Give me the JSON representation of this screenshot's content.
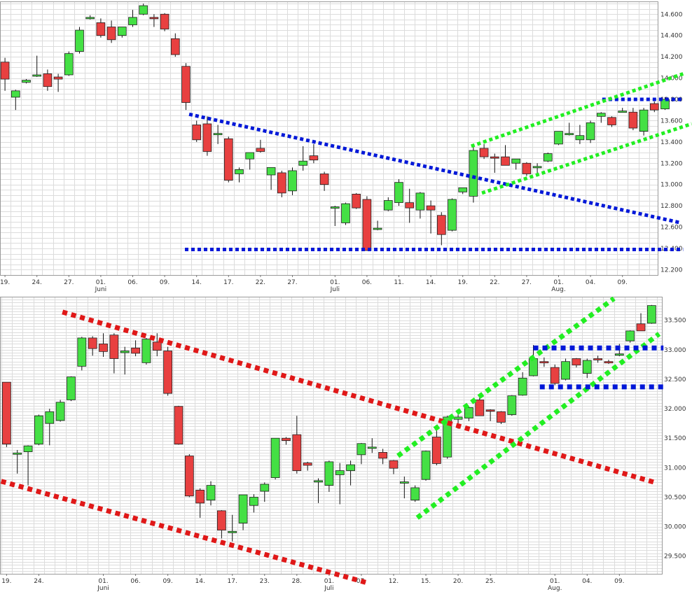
{
  "colors": {
    "up": "#44e044",
    "down": "#e84040",
    "wick": "#111111",
    "blue_line": "#0018d8",
    "green_line": "#22ee22",
    "red_line": "#e01818",
    "grid": "#dcdcdc",
    "background": "#ffffff"
  },
  "chart_data": [
    {
      "type": "candlestick",
      "grid": true,
      "y_axis_position": "right",
      "ylim": [
        12150,
        14720
      ],
      "yticks": [
        "12.200",
        "12.400",
        "12.600",
        "12.800",
        "13.000",
        "13.200",
        "13.400",
        "13.600",
        "13.800",
        "14.000",
        "14.200",
        "14.400",
        "14.600"
      ],
      "ytick_values": [
        12200,
        12400,
        12600,
        12800,
        13000,
        13200,
        13400,
        13600,
        13800,
        14000,
        14200,
        14400,
        14600
      ],
      "xlim": [
        0,
        65
      ],
      "xticks": [
        {
          "x": 0.5,
          "label": "19."
        },
        {
          "x": 3.5,
          "label": "24."
        },
        {
          "x": 6.5,
          "label": "27."
        },
        {
          "x": 9.5,
          "label": "01.",
          "sub": "Juni"
        },
        {
          "x": 12.5,
          "label": "06."
        },
        {
          "x": 15.5,
          "label": "09."
        },
        {
          "x": 18.5,
          "label": "14."
        },
        {
          "x": 21.5,
          "label": "17."
        },
        {
          "x": 24.5,
          "label": "22."
        },
        {
          "x": 27.5,
          "label": "27."
        },
        {
          "x": 31.5,
          "label": "01.",
          "sub": "Juli"
        },
        {
          "x": 34.5,
          "label": "06."
        },
        {
          "x": 37.5,
          "label": "11."
        },
        {
          "x": 40.5,
          "label": "14."
        },
        {
          "x": 43.5,
          "label": "19."
        },
        {
          "x": 46.5,
          "label": "22."
        },
        {
          "x": 49.5,
          "label": "27."
        },
        {
          "x": 52.5,
          "label": "01.",
          "sub": "Aug."
        },
        {
          "x": 55.5,
          "label": "04."
        },
        {
          "x": 58.5,
          "label": "09."
        }
      ],
      "candles": [
        [
          14150,
          14190,
          13880,
          13990
        ],
        [
          13820,
          13890,
          13700,
          13880
        ],
        [
          13960,
          13990,
          13950,
          13980
        ],
        [
          14020,
          14210,
          14010,
          14030
        ],
        [
          14040,
          14080,
          13880,
          13920
        ],
        [
          14010,
          14040,
          13870,
          13990
        ],
        [
          14030,
          14250,
          14020,
          14230
        ],
        [
          14250,
          14480,
          14230,
          14450
        ],
        [
          14570,
          14590,
          14550,
          14570
        ],
        [
          14520,
          14560,
          14380,
          14400
        ],
        [
          14480,
          14540,
          14330,
          14360
        ],
        [
          14400,
          14480,
          14380,
          14480
        ],
        [
          14500,
          14640,
          14480,
          14570
        ],
        [
          14600,
          14700,
          14590,
          14680
        ],
        [
          14570,
          14600,
          14480,
          14560
        ],
        [
          14600,
          14610,
          14440,
          14460
        ],
        [
          14370,
          14420,
          14200,
          14220
        ],
        [
          14110,
          14140,
          13700,
          13770
        ],
        [
          13560,
          13600,
          13400,
          13420
        ],
        [
          13570,
          13640,
          13270,
          13310
        ],
        [
          13480,
          13560,
          13380,
          13480
        ],
        [
          13430,
          13450,
          13020,
          13040
        ],
        [
          13100,
          13160,
          13020,
          13140
        ],
        [
          13240,
          13300,
          13140,
          13300
        ],
        [
          13340,
          13420,
          13300,
          13310
        ],
        [
          13090,
          13160,
          12950,
          13160
        ],
        [
          13110,
          13130,
          12880,
          12920
        ],
        [
          12940,
          13160,
          12900,
          13130
        ],
        [
          13180,
          13360,
          13130,
          13220
        ],
        [
          13270,
          13380,
          13200,
          13230
        ],
        [
          13100,
          13120,
          12940,
          13000
        ],
        [
          12790,
          12800,
          12610,
          12790
        ],
        [
          12640,
          12830,
          12620,
          12820
        ],
        [
          12910,
          12920,
          12770,
          12780
        ],
        [
          12860,
          12890,
          12380,
          12380
        ],
        [
          12590,
          12660,
          12570,
          12590
        ],
        [
          12760,
          12880,
          12750,
          12850
        ],
        [
          12830,
          13050,
          12800,
          13020
        ],
        [
          12830,
          12960,
          12640,
          12780
        ],
        [
          12760,
          12930,
          12680,
          12920
        ],
        [
          12800,
          12850,
          12540,
          12760
        ],
        [
          12710,
          12740,
          12430,
          12530
        ],
        [
          12570,
          12870,
          12560,
          12860
        ],
        [
          12930,
          12970,
          12910,
          12970
        ],
        [
          12890,
          13370,
          12830,
          13320
        ],
        [
          13340,
          13380,
          13240,
          13260
        ],
        [
          13260,
          13290,
          13110,
          13250
        ],
        [
          13260,
          13370,
          13180,
          13180
        ],
        [
          13200,
          13240,
          13140,
          13240
        ],
        [
          13200,
          13210,
          13080,
          13100
        ],
        [
          13170,
          13200,
          13100,
          13170
        ],
        [
          13220,
          13300,
          13210,
          13290
        ],
        [
          13380,
          13500,
          13370,
          13500
        ],
        [
          13480,
          13580,
          13460,
          13480
        ],
        [
          13420,
          13560,
          13380,
          13460
        ],
        [
          13420,
          13600,
          13390,
          13580
        ],
        [
          13640,
          13680,
          13580,
          13670
        ],
        [
          13630,
          13640,
          13540,
          13560
        ],
        [
          13690,
          13720,
          13680,
          13690
        ],
        [
          13680,
          13720,
          13510,
          13530
        ],
        [
          13500,
          13720,
          13460,
          13700
        ],
        [
          13760,
          13780,
          13680,
          13700
        ],
        [
          13710,
          13820,
          13700,
          13800
        ]
      ],
      "trendlines": [
        {
          "color": "blue",
          "x1": 17.8,
          "y1": 13660,
          "x2": 64.0,
          "y2": 12640
        },
        {
          "color": "blue",
          "x1": 17.4,
          "y1": 12390,
          "x2": 64.2,
          "y2": 12390
        },
        {
          "color": "blue",
          "x1": 56.6,
          "y1": 13800,
          "x2": 64.2,
          "y2": 13800
        },
        {
          "color": "green",
          "x1": 44.3,
          "y1": 13360,
          "x2": 64.2,
          "y2": 14040
        },
        {
          "color": "green",
          "x1": 45.3,
          "y1": 12920,
          "x2": 65.0,
          "y2": 13570
        }
      ]
    },
    {
      "type": "candlestick",
      "grid": true,
      "y_axis_position": "right",
      "ylim": [
        29200,
        33900
      ],
      "yticks": [
        "29.500",
        "30.000",
        "30.500",
        "31.000",
        "31.500",
        "32.000",
        "32.500",
        "33.000",
        "33.500"
      ],
      "ytick_values": [
        29500,
        30000,
        30500,
        31000,
        31500,
        32000,
        32500,
        33000,
        33500
      ],
      "xlim": [
        0,
        64
      ],
      "xticks": [
        {
          "x": 0.5,
          "label": "19."
        },
        {
          "x": 3.5,
          "label": "24."
        },
        {
          "x": 9.5,
          "label": "01.",
          "sub": "Juni"
        },
        {
          "x": 12.5,
          "label": "06."
        },
        {
          "x": 15.5,
          "label": "09."
        },
        {
          "x": 18.5,
          "label": "14."
        },
        {
          "x": 21.5,
          "label": "17."
        },
        {
          "x": 24.5,
          "label": "23."
        },
        {
          "x": 27.5,
          "label": "28."
        },
        {
          "x": 30.5,
          "label": "01.",
          "sub": "Juli"
        },
        {
          "x": 33.5,
          "label": "07."
        },
        {
          "x": 36.5,
          "label": "12."
        },
        {
          "x": 39.5,
          "label": "15."
        },
        {
          "x": 42.5,
          "label": "20."
        },
        {
          "x": 45.5,
          "label": "25."
        },
        {
          "x": 51.5,
          "label": "01.",
          "sub": "Aug."
        },
        {
          "x": 54.5,
          "label": "04."
        },
        {
          "x": 57.5,
          "label": "09."
        }
      ],
      "candles": [
        [
          32450,
          32450,
          31350,
          31400
        ],
        [
          31250,
          31300,
          30900,
          31250
        ],
        [
          31270,
          31380,
          30700,
          31370
        ],
        [
          31400,
          31900,
          31380,
          31880
        ],
        [
          31750,
          32000,
          31380,
          31950
        ],
        [
          31800,
          32150,
          31780,
          32110
        ],
        [
          32150,
          32550,
          32130,
          32540
        ],
        [
          32720,
          33220,
          32650,
          33200
        ],
        [
          33200,
          33230,
          32900,
          33020
        ],
        [
          33100,
          33280,
          32880,
          32970
        ],
        [
          33250,
          33280,
          32600,
          32850
        ],
        [
          32950,
          33050,
          32580,
          32980
        ],
        [
          33030,
          33160,
          32890,
          32940
        ],
        [
          32780,
          33200,
          32750,
          33180
        ],
        [
          33130,
          33280,
          32890,
          32990
        ],
        [
          32980,
          33050,
          32220,
          32260
        ],
        [
          32040,
          32050,
          31390,
          31400
        ],
        [
          31200,
          31230,
          30500,
          30520
        ],
        [
          30620,
          30650,
          30150,
          30400
        ],
        [
          30450,
          30770,
          30360,
          30700
        ],
        [
          30270,
          30280,
          29800,
          29940
        ],
        [
          29900,
          30200,
          29750,
          29920
        ],
        [
          30060,
          30540,
          29940,
          30540
        ],
        [
          30360,
          30550,
          30240,
          30500
        ],
        [
          30600,
          30750,
          30420,
          30720
        ],
        [
          30830,
          31500,
          30800,
          31500
        ],
        [
          31500,
          31520,
          31390,
          31460
        ],
        [
          31560,
          31880,
          30900,
          30950
        ],
        [
          31080,
          31100,
          30950,
          31040
        ],
        [
          30780,
          30820,
          30400,
          30780
        ],
        [
          30700,
          31120,
          30590,
          31100
        ],
        [
          30880,
          31080,
          30380,
          30950
        ],
        [
          30950,
          31120,
          30700,
          31050
        ],
        [
          31220,
          31420,
          31060,
          31410
        ],
        [
          31330,
          31500,
          31250,
          31350
        ],
        [
          31260,
          31320,
          31060,
          31160
        ],
        [
          31120,
          31130,
          30890,
          30990
        ],
        [
          30750,
          30850,
          30480,
          30760
        ],
        [
          30450,
          30700,
          30420,
          30660
        ],
        [
          30800,
          31290,
          30780,
          31280
        ],
        [
          31520,
          31630,
          31040,
          31070
        ],
        [
          31180,
          31880,
          31150,
          31860
        ],
        [
          31820,
          31900,
          31660,
          31860
        ],
        [
          31840,
          32030,
          31790,
          32020
        ],
        [
          32150,
          32190,
          31880,
          31880
        ],
        [
          31980,
          31990,
          31790,
          31960
        ],
        [
          31950,
          31960,
          31740,
          31770
        ],
        [
          31900,
          32230,
          31880,
          32220
        ],
        [
          32230,
          32620,
          32220,
          32520
        ],
        [
          32560,
          33080,
          32550,
          32850
        ],
        [
          32800,
          32870,
          32710,
          32780
        ],
        [
          32700,
          32750,
          32400,
          32430
        ],
        [
          32500,
          32850,
          32480,
          32800
        ],
        [
          32850,
          32860,
          32700,
          32740
        ],
        [
          32600,
          32850,
          32520,
          32820
        ],
        [
          32850,
          32900,
          32780,
          32830
        ],
        [
          32800,
          32830,
          32760,
          32780
        ],
        [
          32930,
          33100,
          32890,
          32930
        ],
        [
          33150,
          33330,
          33120,
          33320
        ],
        [
          33440,
          33620,
          33320,
          33320
        ],
        [
          33450,
          33760,
          33440,
          33750
        ]
      ],
      "trendlines": [
        {
          "color": "red",
          "x1": 5.7,
          "y1": 33640,
          "x2": 60.8,
          "y2": 30750
        },
        {
          "color": "red",
          "x1": 0.0,
          "y1": 30770,
          "x2": 34.0,
          "y2": 29050
        },
        {
          "color": "green",
          "x1": 36.9,
          "y1": 31200,
          "x2": 57.0,
          "y2": 33870
        },
        {
          "color": "green",
          "x1": 38.7,
          "y1": 30150,
          "x2": 61.2,
          "y2": 33270
        },
        {
          "color": "blue",
          "x1": 49.5,
          "y1": 33030,
          "x2": 61.6,
          "y2": 33030
        },
        {
          "color": "blue",
          "x1": 50.1,
          "y1": 32370,
          "x2": 61.6,
          "y2": 32370
        }
      ]
    }
  ]
}
